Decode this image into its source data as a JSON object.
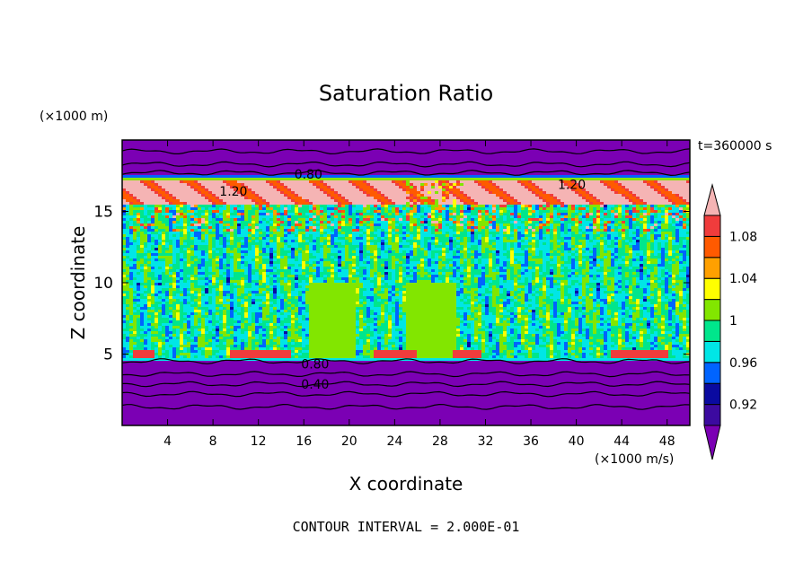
{
  "chart_data": {
    "type": "heatmap",
    "title": "Saturation Ratio",
    "xlabel": "X coordinate",
    "ylabel": "Z coordinate",
    "x_unit_label": "(×1000 m/s)",
    "y_unit_label": "(×1000 m)",
    "time_label": "t=360000 s",
    "footer": "CONTOUR INTERVAL = 2.000E-01",
    "xlim": [
      0,
      50
    ],
    "ylim": [
      0,
      20
    ],
    "x_ticks": [
      "4",
      "8",
      "12",
      "16",
      "20",
      "24",
      "28",
      "32",
      "36",
      "40",
      "44",
      "48"
    ],
    "x_tick_values": [
      4,
      8,
      12,
      16,
      20,
      24,
      28,
      32,
      36,
      40,
      44,
      48
    ],
    "y_ticks": [
      "5",
      "10",
      "15"
    ],
    "y_tick_values": [
      5,
      10,
      15
    ],
    "colorbar": {
      "levels": [
        0.9,
        0.92,
        0.94,
        0.96,
        0.98,
        1.0,
        1.02,
        1.04,
        1.06,
        1.08,
        1.1
      ],
      "labels": [
        "0.92",
        "0.96",
        "1",
        "1.04",
        "1.08"
      ],
      "label_values": [
        0.92,
        0.96,
        1.0,
        1.04,
        1.08
      ],
      "colors": [
        "#7b00b4",
        "#3c0aa0",
        "#0a0aa0",
        "#0064ff",
        "#00e6e6",
        "#00e68c",
        "#82e600",
        "#ffff00",
        "#ffa000",
        "#ff5a00",
        "#f03c3c",
        "#f5b4b4"
      ],
      "extend": "both"
    },
    "contour_labels": [
      {
        "text": "0.80",
        "x": 16.4,
        "z": 17.6
      },
      {
        "text": "1.20",
        "x": 9.8,
        "z": 16.4
      },
      {
        "text": "1.20",
        "x": 39.6,
        "z": 16.9
      },
      {
        "text": "0.80",
        "x": 17.0,
        "z": 4.3
      },
      {
        "text": "0.40",
        "x": 17.0,
        "z": 2.9
      }
    ],
    "regions": {
      "upper_dry_layer_z": [
        17.5,
        20
      ],
      "supersaturated_band_z": [
        15.5,
        17.5
      ],
      "near_saturated_column_z": [
        4.5,
        15.5
      ],
      "lower_dry_layer_z": [
        0,
        4.5
      ]
    }
  }
}
